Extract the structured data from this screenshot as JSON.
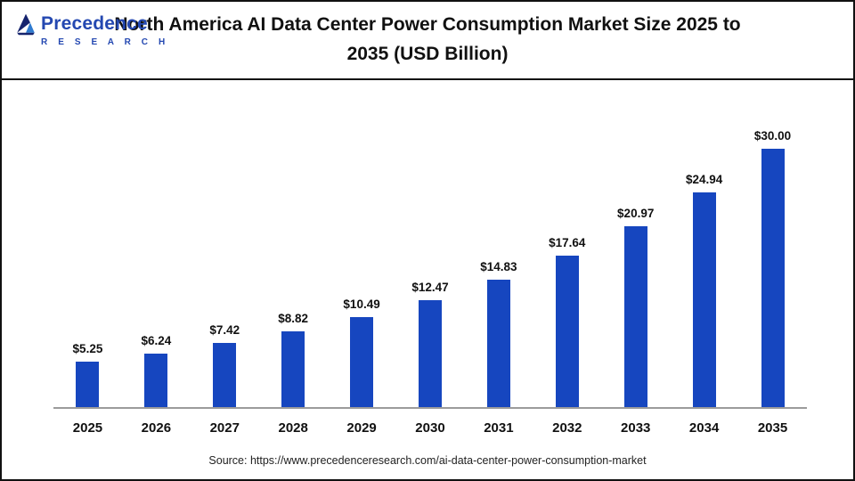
{
  "header": {
    "title": "North America AI Data Center Power Consumption Market Size 2025 to 2035 (USD Billion)",
    "logo": {
      "name": "Precedence",
      "sub": "R E S E A R C H"
    }
  },
  "chart_data": {
    "type": "bar",
    "title": "North America AI Data Center Power Consumption Market Size 2025 to 2035 (USD Billion)",
    "categories": [
      "2025",
      "2026",
      "2027",
      "2028",
      "2029",
      "2030",
      "2031",
      "2032",
      "2033",
      "2034",
      "2035"
    ],
    "values": [
      5.25,
      6.24,
      7.42,
      8.82,
      10.49,
      12.47,
      14.83,
      17.64,
      20.97,
      24.94,
      30.0
    ],
    "value_labels": [
      "$5.25",
      "$6.24",
      "$7.42",
      "$8.82",
      "$10.49",
      "$12.47",
      "$14.83",
      "$17.64",
      "$20.97",
      "$24.94",
      "$30.00"
    ],
    "xlabel": "",
    "ylabel": "",
    "ylim": [
      0,
      30
    ],
    "grid": false,
    "legend": null,
    "bar_color": "#1646bf"
  },
  "footer": {
    "source": "Source: https://www.precedenceresearch.com/ai-data-center-power-consumption-market"
  }
}
